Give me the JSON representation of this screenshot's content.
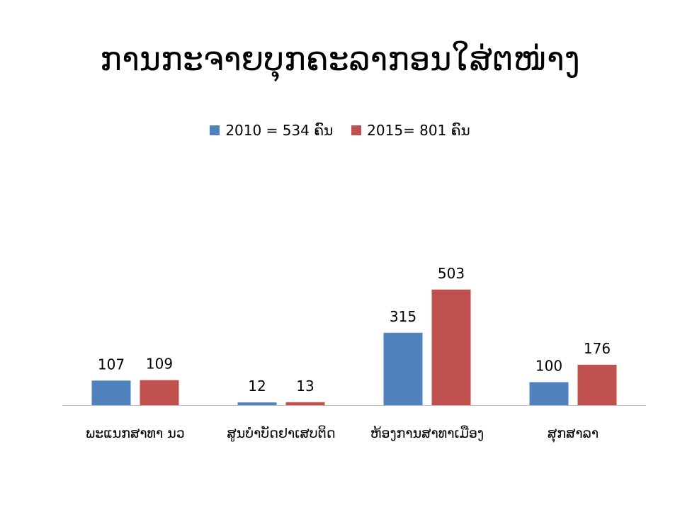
{
  "chart_data": {
    "type": "bar",
    "title": "ການກະຈາຍບຸກຄະລາກອນໃສ່ຕໜ່າງ",
    "categories": [
      "ພະແນກສາທາ ນວ",
      "ສູນບໍາບັດຢາເສບຕິດ",
      "ຫ້ອງການສາທາເມືອງ",
      "ສຸກສາລາ"
    ],
    "series": [
      {
        "name": "2010 = 534 ຄົນ",
        "color": "#4F81BD",
        "values": [
          107,
          12,
          315,
          100
        ]
      },
      {
        "name": "2015= 801 ຄົນ",
        "color": "#C0504D",
        "values": [
          109,
          13,
          503,
          176
        ]
      }
    ],
    "ylim": [
      0,
      550
    ],
    "grid": false,
    "legend_position": "top"
  }
}
